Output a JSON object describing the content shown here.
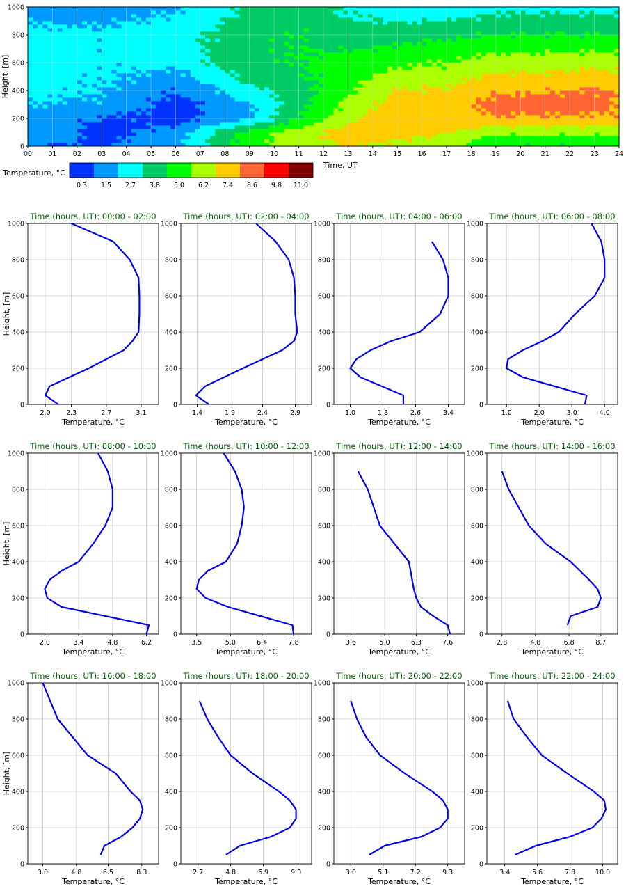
{
  "heatmap": {
    "ylabel": "Height, [m]",
    "xlabel": "Time, UT",
    "x_ticks": [
      "00",
      "01",
      "02",
      "03",
      "04",
      "05",
      "06",
      "07",
      "08",
      "09",
      "10",
      "11",
      "12",
      "13",
      "14",
      "15",
      "16",
      "17",
      "18",
      "19",
      "20",
      "21",
      "22",
      "23",
      "24"
    ],
    "y_ticks": [
      "0",
      "200",
      "400",
      "600",
      "800",
      "1000"
    ],
    "colorbar_label": "Temperature, °C",
    "colorbar_ticks": [
      "0.3",
      "1.5",
      "2.7",
      "3.8",
      "5.0",
      "6.2",
      "7.4",
      "8.6",
      "9.8",
      "11.0"
    ],
    "colors": [
      "#0033ff",
      "#0099ff",
      "#00ffff",
      "#00cc66",
      "#00ff00",
      "#aaff00",
      "#ffcc00",
      "#ff6633",
      "#ff0000",
      "#800000"
    ]
  },
  "profile_ylabel": "Height, [m]",
  "profile_xlabel": "Temperature, °C",
  "profile_y_ticks": [
    "0",
    "200",
    "400",
    "600",
    "800",
    "1000"
  ],
  "line_color": "#0000ee",
  "chart_data": [
    {
      "type": "heatmap",
      "xlabel": "Time, UT",
      "ylabel": "Height, [m]",
      "xlim": [
        0,
        24
      ],
      "ylim": [
        0,
        1000
      ],
      "colorbar_levels": [
        0.3,
        1.5,
        2.7,
        3.8,
        5.0,
        6.2,
        7.4,
        8.6,
        9.8,
        11.0
      ],
      "time_hours": [
        0,
        3,
        6,
        9,
        11,
        13,
        15,
        17,
        19,
        21,
        23,
        24
      ],
      "heights_m": [
        0,
        100,
        200,
        300,
        400,
        600,
        800,
        1000
      ],
      "values": [
        [
          1.5,
          1.4,
          2.4,
          6.0,
          6.5,
          7.5,
          7.0,
          6.5,
          5.0,
          5.0,
          5.0,
          5.0
        ],
        [
          2.7,
          1.0,
          2.0,
          5.5,
          7.0,
          8.0,
          8.0,
          7.5,
          6.5,
          6.5,
          6.5,
          6.5
        ],
        [
          2.0,
          1.4,
          1.0,
          2.5,
          5.0,
          7.0,
          8.5,
          8.0,
          8.5,
          8.5,
          8.5,
          8.5
        ],
        [
          2.7,
          2.5,
          1.0,
          2.5,
          4.5,
          6.5,
          8.0,
          8.0,
          9.0,
          9.0,
          9.0,
          8.5
        ],
        [
          3.0,
          2.8,
          1.5,
          3.5,
          4.5,
          6.0,
          7.5,
          7.5,
          8.5,
          8.5,
          8.8,
          8.5
        ],
        [
          3.0,
          2.9,
          3.0,
          4.8,
          5.0,
          5.5,
          6.0,
          6.2,
          6.8,
          6.9,
          7.0,
          7.0
        ],
        [
          3.0,
          2.9,
          3.4,
          4.5,
          5.0,
          4.3,
          4.5,
          4.8,
          5.0,
          5.0,
          5.0,
          5.0
        ],
        [
          2.2,
          2.2,
          2.5,
          4.0,
          4.5,
          3.5,
          3.0,
          2.8,
          3.5,
          3.5,
          3.5,
          3.5
        ]
      ]
    },
    {
      "type": "line",
      "title": "Time (hours, UT): 00:00 - 02:00",
      "xlabel": "Temperature, °C",
      "ylabel": "Height, [m]",
      "x_ticks": [
        "2.0",
        "2.3",
        "2.7",
        "3.1"
      ],
      "xlim": [
        1.8,
        3.3
      ],
      "ylim": [
        0,
        1000
      ],
      "x": [
        2.15,
        2.0,
        2.05,
        2.5,
        2.9,
        3.0,
        3.07,
        3.08,
        3.08,
        3.07,
        2.97,
        2.78,
        2.3
      ],
      "y": [
        0,
        50,
        100,
        200,
        300,
        350,
        400,
        500,
        600,
        700,
        800,
        900,
        1000
      ]
    },
    {
      "type": "line",
      "title": "Time (hours, UT): 02:00 - 04:00",
      "xlabel": "Temperature, °C",
      "ylabel": "Height, [m]",
      "x_ticks": [
        "1.4",
        "1.9",
        "2.4",
        "2.9"
      ],
      "xlim": [
        1.15,
        3.15
      ],
      "ylim": [
        0,
        1000
      ],
      "x": [
        1.58,
        1.38,
        1.52,
        2.1,
        2.7,
        2.88,
        2.93,
        2.9,
        2.9,
        2.88,
        2.8,
        2.6,
        2.3
      ],
      "y": [
        0,
        50,
        100,
        200,
        300,
        350,
        400,
        500,
        600,
        700,
        800,
        900,
        1000
      ]
    },
    {
      "type": "line",
      "title": "Time (hours, UT): 04:00 - 06:00",
      "xlabel": "Temperature, °C",
      "ylabel": "Height, [m]",
      "x_ticks": [
        "1.0",
        "1.8",
        "2.6",
        "3.4"
      ],
      "xlim": [
        0.6,
        3.8
      ],
      "ylim": [
        0,
        1000
      ],
      "x": [
        2.3,
        2.3,
        1.25,
        1.0,
        1.15,
        1.5,
        2.0,
        2.7,
        3.2,
        3.4,
        3.4,
        3.27,
        3.0
      ],
      "y": [
        0,
        50,
        150,
        200,
        250,
        300,
        350,
        400,
        500,
        600,
        700,
        800,
        900
      ]
    },
    {
      "type": "line",
      "title": "Time (hours, UT): 06:00 - 08:00",
      "xlabel": "Temperature, °C",
      "ylabel": "Height, [m]",
      "x_ticks": [
        "1.0",
        "2.0",
        "3.0",
        "4.0"
      ],
      "xlim": [
        0.4,
        4.4
      ],
      "ylim": [
        0,
        1000
      ],
      "x": [
        3.4,
        3.45,
        1.5,
        1.0,
        1.05,
        1.5,
        2.1,
        2.6,
        3.1,
        3.7,
        4.0,
        4.0,
        3.9,
        3.6
      ],
      "y": [
        0,
        50,
        150,
        200,
        250,
        300,
        350,
        400,
        500,
        600,
        700,
        800,
        900,
        1000
      ]
    },
    {
      "type": "line",
      "title": "Time (hours, UT): 08:00 - 10:00",
      "xlabel": "Temperature, °C",
      "ylabel": "Height, [m]",
      "x_ticks": [
        "2.0",
        "3.4",
        "4.8",
        "6.2"
      ],
      "xlim": [
        1.3,
        6.7
      ],
      "ylim": [
        0,
        1000
      ],
      "x": [
        6.2,
        6.3,
        2.7,
        2.1,
        2.0,
        2.2,
        2.7,
        3.4,
        4.0,
        4.5,
        4.8,
        4.8,
        4.6,
        4.2
      ],
      "y": [
        0,
        50,
        150,
        200,
        250,
        300,
        350,
        400,
        500,
        600,
        700,
        800,
        900,
        1000
      ]
    },
    {
      "type": "line",
      "title": "Time (hours, UT): 10:00 - 12:00",
      "xlabel": "Temperature, °C",
      "ylabel": "Height, [m]",
      "x_ticks": [
        "3.5",
        "5.0",
        "6.4",
        "7.8"
      ],
      "xlim": [
        2.8,
        8.6
      ],
      "ylim": [
        0,
        1000
      ],
      "x": [
        7.8,
        7.75,
        4.9,
        3.9,
        3.5,
        3.6,
        4.0,
        4.8,
        5.3,
        5.5,
        5.6,
        5.5,
        5.2,
        4.7
      ],
      "y": [
        0,
        50,
        150,
        200,
        250,
        300,
        350,
        400,
        500,
        600,
        700,
        800,
        900,
        1000
      ]
    },
    {
      "type": "line",
      "title": "Time (hours, UT): 12:00 - 14:00",
      "xlabel": "Temperature, °C",
      "ylabel": "Height, [m]",
      "x_ticks": [
        "3.6",
        "5.0",
        "6.3",
        "7.6"
      ],
      "xlim": [
        2.9,
        8.3
      ],
      "ylim": [
        0,
        1000
      ],
      "x": [
        7.7,
        7.6,
        7.0,
        6.5,
        6.3,
        6.2,
        6.0,
        5.4,
        4.8,
        4.3,
        3.9
      ],
      "y": [
        0,
        50,
        100,
        150,
        200,
        250,
        400,
        500,
        600,
        800,
        900
      ]
    },
    {
      "type": "line",
      "title": "Time (hours, UT): 14:00 - 16:00",
      "xlabel": "Temperature, °C",
      "ylabel": "Height, [m]",
      "x_ticks": [
        "2.8",
        "4.8",
        "6.8",
        "8.7"
      ],
      "xlim": [
        1.9,
        9.7
      ],
      "ylim": [
        0,
        1000
      ],
      "x": [
        6.7,
        6.9,
        8.5,
        8.7,
        8.5,
        8.0,
        6.9,
        5.4,
        4.4,
        3.8,
        3.2,
        2.8
      ],
      "y": [
        50,
        100,
        150,
        200,
        250,
        300,
        400,
        500,
        600,
        700,
        800,
        900
      ]
    },
    {
      "type": "line",
      "title": "Time (hours, UT): 16:00 - 18:00",
      "xlabel": "Temperature, °C",
      "ylabel": "Height, [m]",
      "x_ticks": [
        "3.0",
        "4.8",
        "6.5",
        "8.3"
      ],
      "xlim": [
        2.2,
        9.2
      ],
      "ylim": [
        0,
        1000
      ],
      "x": [
        6.1,
        6.3,
        7.2,
        7.8,
        8.2,
        8.35,
        8.2,
        7.7,
        6.9,
        5.4,
        4.6,
        3.8,
        3.4,
        3.0
      ],
      "y": [
        50,
        100,
        150,
        200,
        250,
        300,
        350,
        400,
        500,
        600,
        700,
        800,
        900,
        1000
      ]
    },
    {
      "type": "line",
      "title": "Time (hours, UT): 18:00 - 20:00",
      "xlabel": "Temperature, °C",
      "ylabel": "Height, [m]",
      "x_ticks": [
        "2.7",
        "4.8",
        "6.9",
        "9.0"
      ],
      "xlim": [
        1.6,
        10.0
      ],
      "ylim": [
        0,
        1000
      ],
      "x": [
        4.5,
        5.4,
        7.4,
        8.6,
        9.0,
        9.0,
        8.6,
        7.9,
        6.2,
        4.8,
        4.0,
        3.3,
        2.8
      ],
      "y": [
        50,
        100,
        150,
        200,
        250,
        300,
        350,
        400,
        500,
        600,
        700,
        800,
        900
      ]
    },
    {
      "type": "line",
      "title": "Time (hours, UT): 20:00 - 22:00",
      "xlabel": "Temperature, °C",
      "ylabel": "Height, [m]",
      "x_ticks": [
        "3.0",
        "5.1",
        "7.2",
        "9.3"
      ],
      "xlim": [
        1.9,
        10.4
      ],
      "ylim": [
        0,
        1000
      ],
      "x": [
        4.2,
        5.2,
        7.6,
        8.8,
        9.3,
        9.3,
        9.0,
        8.3,
        6.5,
        4.9,
        4.0,
        3.4,
        3.0
      ],
      "y": [
        50,
        100,
        150,
        200,
        250,
        300,
        350,
        400,
        500,
        600,
        700,
        800,
        900
      ]
    },
    {
      "type": "line",
      "title": "Time (hours, UT): 22:00 - 24:00",
      "xlabel": "Temperature, °C",
      "ylabel": "Height, [m]",
      "x_ticks": [
        "3.4",
        "5.6",
        "7.8",
        "10.0"
      ],
      "xlim": [
        2.2,
        11.0
      ],
      "ylim": [
        0,
        1000
      ],
      "x": [
        4.1,
        5.5,
        7.8,
        9.3,
        9.9,
        10.2,
        10.1,
        9.4,
        7.6,
        5.9,
        4.9,
        4.0,
        3.6
      ],
      "y": [
        50,
        100,
        150,
        200,
        250,
        300,
        350,
        400,
        500,
        600,
        700,
        800,
        900
      ]
    }
  ]
}
